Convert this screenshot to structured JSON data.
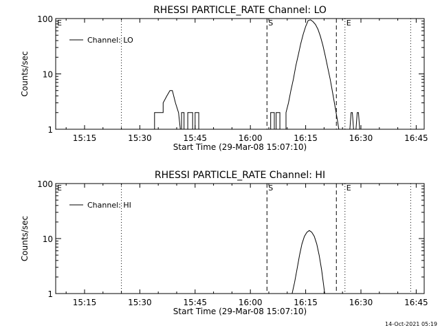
{
  "chart_data": [
    {
      "type": "line",
      "title": "RHESSI PARTICLE_RATE Channel: LO",
      "xlabel": "Start Time (29-Mar-08 15:07:10)",
      "ylabel": "Counts/sec",
      "xscale": "time",
      "yscale": "log",
      "xlim": [
        "15:07:10",
        "16:47:10"
      ],
      "ylim": [
        1,
        100
      ],
      "x_tick_labels": [
        "15:15",
        "15:30",
        "15:45",
        "16:00",
        "16:15",
        "16:30",
        "16:45"
      ],
      "y_tick_labels": [
        "1",
        "10",
        "100"
      ],
      "legend": {
        "entries": [
          "Channel: LO"
        ],
        "position": "top-left"
      },
      "markers": [
        {
          "time": "15:25:00",
          "style": "dotted",
          "label": ""
        },
        {
          "time": "16:04:30",
          "style": "dashed",
          "label": "S"
        },
        {
          "time": "16:23:20",
          "style": "dashed",
          "label": ""
        },
        {
          "time": "16:25:40",
          "style": "dotted",
          "label": "E"
        },
        {
          "time": "16:43:30",
          "style": "dotted",
          "label": ""
        }
      ],
      "edge_labels": [
        {
          "time": "15:07:10",
          "label": "E"
        }
      ],
      "series": [
        {
          "name": "Channel: LO",
          "points": [
            [
              "15:33:00",
              1
            ],
            [
              "15:34:00",
              1
            ],
            [
              "15:34:00",
              2
            ],
            [
              "15:35:00",
              2
            ],
            [
              "15:35:00",
              2
            ],
            [
              "15:36:20",
              2
            ],
            [
              "15:36:20",
              3
            ],
            [
              "15:37:20",
              4
            ],
            [
              "15:38:10",
              5
            ],
            [
              "15:38:50",
              5
            ],
            [
              "15:39:40",
              3
            ],
            [
              "15:40:30",
              2
            ],
            [
              "15:41:00",
              1
            ],
            [
              "15:41:20",
              1
            ],
            [
              "15:41:20",
              2
            ],
            [
              "15:42:00",
              2
            ],
            [
              "15:42:00",
              1
            ],
            [
              "15:43:00",
              1
            ],
            [
              "15:43:00",
              2
            ],
            [
              "15:44:20",
              2
            ],
            [
              "15:44:20",
              1
            ],
            [
              "15:45:00",
              1
            ],
            [
              "15:45:00",
              2
            ],
            [
              "15:46:00",
              2
            ],
            [
              "15:46:00",
              1
            ],
            [
              "16:05:00",
              1
            ],
            [
              "16:05:30",
              1
            ],
            [
              "16:05:30",
              2
            ],
            [
              "16:06:30",
              2
            ],
            [
              "16:06:30",
              1
            ],
            [
              "16:07:00",
              1
            ],
            [
              "16:07:00",
              2
            ],
            [
              "16:08:00",
              2
            ],
            [
              "16:08:00",
              1
            ],
            [
              "16:09:40",
              1
            ],
            [
              "16:09:40",
              2
            ],
            [
              "16:10:20",
              3
            ],
            [
              "16:11:00",
              5
            ],
            [
              "16:11:40",
              8
            ],
            [
              "16:12:20",
              14
            ],
            [
              "16:13:00",
              22
            ],
            [
              "16:13:40",
              35
            ],
            [
              "16:14:20",
              52
            ],
            [
              "16:15:00",
              72
            ],
            [
              "16:15:40",
              92
            ],
            [
              "16:16:20",
              95
            ],
            [
              "16:17:00",
              88
            ],
            [
              "16:17:40",
              78
            ],
            [
              "16:18:20",
              64
            ],
            [
              "16:19:00",
              48
            ],
            [
              "16:19:40",
              33
            ],
            [
              "16:20:20",
              21
            ],
            [
              "16:21:00",
              13
            ],
            [
              "16:21:40",
              8
            ],
            [
              "16:22:20",
              4.5
            ],
            [
              "16:23:00",
              2.5
            ],
            [
              "16:23:40",
              1.4
            ],
            [
              "16:24:00",
              1
            ],
            [
              "16:27:00",
              1
            ],
            [
              "16:27:20",
              2
            ],
            [
              "16:27:40",
              2
            ],
            [
              "16:28:00",
              1
            ],
            [
              "16:28:40",
              1
            ],
            [
              "16:29:00",
              2
            ],
            [
              "16:29:20",
              2
            ],
            [
              "16:29:40",
              1
            ]
          ]
        }
      ]
    },
    {
      "type": "line",
      "title": "RHESSI PARTICLE_RATE Channel: HI",
      "xlabel": "Start Time (29-Mar-08 15:07:10)",
      "ylabel": "Counts/sec",
      "xscale": "time",
      "yscale": "log",
      "xlim": [
        "15:07:10",
        "16:47:10"
      ],
      "ylim": [
        1,
        100
      ],
      "x_tick_labels": [
        "15:15",
        "15:30",
        "15:45",
        "16:00",
        "16:15",
        "16:30",
        "16:45"
      ],
      "y_tick_labels": [
        "1",
        "10",
        "100"
      ],
      "legend": {
        "entries": [
          "Channel: HI"
        ],
        "position": "top-left"
      },
      "markers": [
        {
          "time": "15:25:00",
          "style": "dotted",
          "label": ""
        },
        {
          "time": "16:04:30",
          "style": "dashed",
          "label": "S"
        },
        {
          "time": "16:23:20",
          "style": "dashed",
          "label": ""
        },
        {
          "time": "16:25:40",
          "style": "dotted",
          "label": "E"
        },
        {
          "time": "16:43:30",
          "style": "dotted",
          "label": ""
        }
      ],
      "edge_labels": [
        {
          "time": "15:07:10",
          "label": "E"
        }
      ],
      "series": [
        {
          "name": "Channel: HI",
          "points": [
            [
              "16:11:20",
              1
            ],
            [
              "16:12:00",
              1.6
            ],
            [
              "16:12:40",
              2.8
            ],
            [
              "16:13:20",
              5
            ],
            [
              "16:14:00",
              8
            ],
            [
              "16:14:40",
              11
            ],
            [
              "16:15:20",
              13
            ],
            [
              "16:16:00",
              14
            ],
            [
              "16:16:40",
              13
            ],
            [
              "16:17:20",
              11
            ],
            [
              "16:18:00",
              8
            ],
            [
              "16:18:40",
              5
            ],
            [
              "16:19:20",
              2.7
            ],
            [
              "16:19:50",
              1.5
            ],
            [
              "16:20:10",
              1
            ]
          ]
        }
      ]
    }
  ],
  "footer": {
    "timestamp": "14-Oct-2021 05:19"
  },
  "colors": {
    "background": "#ffffff",
    "foreground": "#000000"
  }
}
